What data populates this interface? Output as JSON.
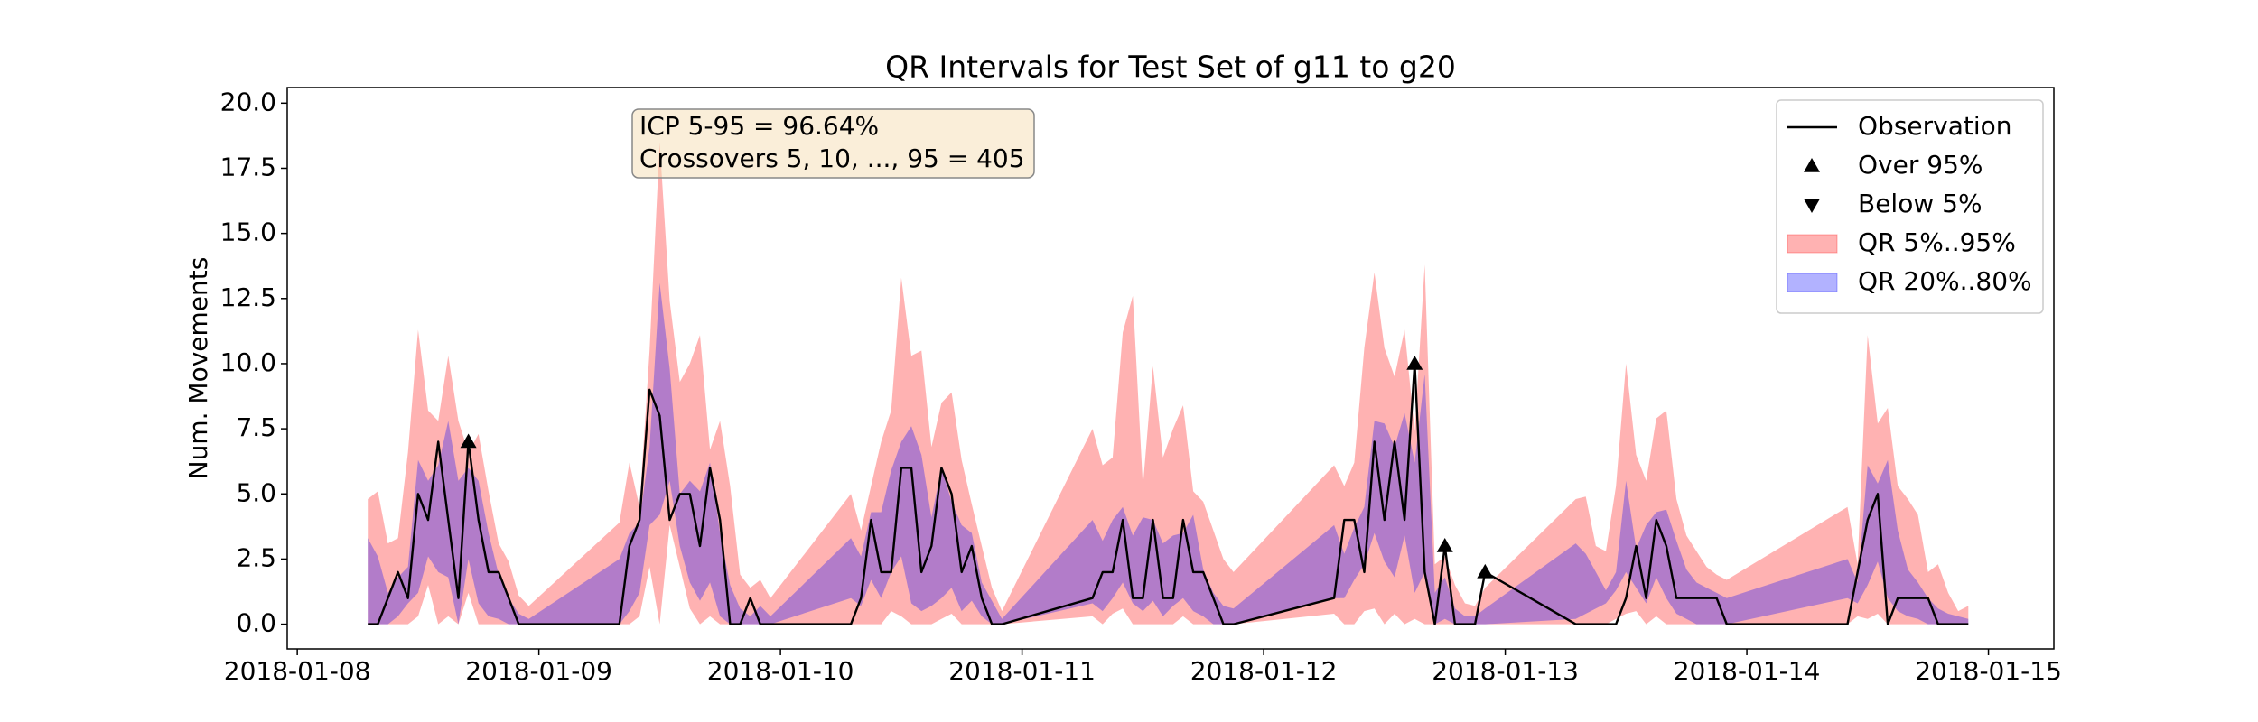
{
  "chart_data": {
    "type": "line",
    "title": "QR Intervals for Test Set of g11 to g20",
    "ylabel": "Num. Movements",
    "annotation": [
      "ICP 5-95 = 96.64%",
      "Crossovers 5, 10, ..., 95 = 405"
    ],
    "legend": "upper right",
    "grid": false,
    "xlim": [
      "2018-01-07T23:00",
      "2018-01-15T06:30"
    ],
    "xticks": [
      "2018-01-08",
      "2018-01-09",
      "2018-01-10",
      "2018-01-11",
      "2018-01-12",
      "2018-01-13",
      "2018-01-14",
      "2018-01-15"
    ],
    "ylim": [
      -0.95,
      20.6
    ],
    "yticks": [
      {
        "value": 0,
        "label": "0.0"
      },
      2.5,
      {
        "value": 5,
        "label": "5.0"
      },
      7.5,
      {
        "value": 10,
        "label": "10.0"
      },
      12.5,
      {
        "value": 15,
        "label": "15.0"
      },
      17.5,
      {
        "value": 20,
        "label": "20.0"
      }
    ],
    "x": [
      "2018-01-08T07:00",
      "2018-01-08T08:00",
      "2018-01-08T09:00",
      "2018-01-08T10:00",
      "2018-01-08T11:00",
      "2018-01-08T12:00",
      "2018-01-08T13:00",
      "2018-01-08T14:00",
      "2018-01-08T15:00",
      "2018-01-08T16:00",
      "2018-01-08T17:00",
      "2018-01-08T18:00",
      "2018-01-08T19:00",
      "2018-01-08T20:00",
      "2018-01-08T21:00",
      "2018-01-08T22:00",
      "2018-01-08T23:00",
      "2018-01-09T08:00",
      "2018-01-09T09:00",
      "2018-01-09T10:00",
      "2018-01-09T11:00",
      "2018-01-09T12:00",
      "2018-01-09T13:00",
      "2018-01-09T14:00",
      "2018-01-09T15:00",
      "2018-01-09T16:00",
      "2018-01-09T17:00",
      "2018-01-09T18:00",
      "2018-01-09T19:00",
      "2018-01-09T20:00",
      "2018-01-09T21:00",
      "2018-01-09T22:00",
      "2018-01-09T23:00",
      "2018-01-10T07:00",
      "2018-01-10T08:00",
      "2018-01-10T09:00",
      "2018-01-10T10:00",
      "2018-01-10T11:00",
      "2018-01-10T12:00",
      "2018-01-10T13:00",
      "2018-01-10T14:00",
      "2018-01-10T15:00",
      "2018-01-10T16:00",
      "2018-01-10T17:00",
      "2018-01-10T18:00",
      "2018-01-10T19:00",
      "2018-01-10T20:00",
      "2018-01-10T21:00",
      "2018-01-10T22:00",
      "2018-01-11T07:00",
      "2018-01-11T08:00",
      "2018-01-11T09:00",
      "2018-01-11T10:00",
      "2018-01-11T11:00",
      "2018-01-11T12:00",
      "2018-01-11T13:00",
      "2018-01-11T14:00",
      "2018-01-11T15:00",
      "2018-01-11T16:00",
      "2018-01-11T17:00",
      "2018-01-11T18:00",
      "2018-01-11T19:00",
      "2018-01-11T20:00",
      "2018-01-11T21:00",
      "2018-01-12T07:00",
      "2018-01-12T08:00",
      "2018-01-12T09:00",
      "2018-01-12T10:00",
      "2018-01-12T11:00",
      "2018-01-12T12:00",
      "2018-01-12T13:00",
      "2018-01-12T14:00",
      "2018-01-12T15:00",
      "2018-01-12T16:00",
      "2018-01-12T17:00",
      "2018-01-12T18:00",
      "2018-01-12T19:00",
      "2018-01-12T20:00",
      "2018-01-12T21:00",
      "2018-01-12T22:00",
      "2018-01-13T07:00",
      "2018-01-13T08:00",
      "2018-01-13T09:00",
      "2018-01-13T10:00",
      "2018-01-13T11:00",
      "2018-01-13T12:00",
      "2018-01-13T13:00",
      "2018-01-13T14:00",
      "2018-01-13T15:00",
      "2018-01-13T16:00",
      "2018-01-13T17:00",
      "2018-01-13T18:00",
      "2018-01-13T19:00",
      "2018-01-13T20:00",
      "2018-01-13T21:00",
      "2018-01-13T22:00",
      "2018-01-14T10:00",
      "2018-01-14T11:00",
      "2018-01-14T12:00",
      "2018-01-14T13:00",
      "2018-01-14T14:00",
      "2018-01-14T15:00",
      "2018-01-14T16:00",
      "2018-01-14T17:00",
      "2018-01-14T18:00",
      "2018-01-14T19:00",
      "2018-01-14T20:00",
      "2018-01-14T21:00",
      "2018-01-14T22:00"
    ],
    "series": [
      {
        "name": "Observation",
        "kind": "line",
        "color": "#000000",
        "values": [
          0,
          0,
          1,
          2,
          1,
          5,
          4,
          7,
          4,
          1,
          7,
          4,
          2,
          2,
          1,
          0,
          0,
          0,
          3,
          4,
          9,
          8,
          4,
          5,
          5,
          3,
          6,
          4,
          0,
          0,
          1,
          0,
          0,
          0,
          1,
          4,
          2,
          2,
          6,
          6,
          2,
          3,
          6,
          5,
          2,
          3,
          1,
          0,
          0,
          1,
          2,
          2,
          4,
          1,
          1,
          4,
          1,
          1,
          4,
          2,
          2,
          1,
          0,
          0,
          1,
          4,
          4,
          2,
          7,
          4,
          7,
          4,
          10,
          2,
          0,
          3,
          0,
          0,
          0,
          2,
          0,
          0,
          0,
          0,
          0,
          1,
          3,
          1,
          4,
          3,
          1,
          1,
          1,
          1,
          1,
          0,
          0,
          2,
          4,
          5,
          0,
          1,
          1,
          1,
          1,
          0,
          0,
          0,
          0
        ]
      },
      {
        "name": "Over 95%",
        "kind": "marker-up",
        "color": "#000000",
        "x": [
          "2018-01-08T17:00",
          "2018-01-12T15:00",
          "2018-01-12T18:00",
          "2018-01-12T22:00"
        ],
        "values": [
          7,
          10,
          3,
          2
        ]
      },
      {
        "name": "Below 5%",
        "kind": "marker-down",
        "color": "#000000",
        "x": [],
        "values": []
      },
      {
        "name": "QR 5%..95%",
        "kind": "band",
        "color": "#ff0000",
        "alpha": 0.3,
        "lower": [
          0,
          0,
          0,
          0,
          0,
          0.3,
          1.5,
          0,
          0.3,
          0,
          1.2,
          0,
          0,
          0,
          0,
          0,
          0,
          0,
          0,
          0.3,
          2.2,
          0,
          3.8,
          2.2,
          0.6,
          0,
          0.3,
          0,
          0,
          0,
          0,
          0,
          0,
          0,
          0,
          0,
          0,
          0.5,
          0.3,
          0,
          0,
          0,
          0.2,
          0.4,
          0,
          0,
          0,
          0,
          0,
          0.3,
          0,
          0.4,
          0.6,
          0,
          0,
          0,
          0,
          0,
          0.3,
          0,
          0,
          0,
          0,
          0,
          0.4,
          0,
          0,
          0.5,
          0.6,
          0,
          0.4,
          0,
          0.2,
          0,
          0,
          0,
          0,
          0,
          0,
          0,
          0,
          0,
          0,
          0,
          0.2,
          0.4,
          0.5,
          0,
          0.3,
          0,
          0,
          0,
          0,
          0,
          0,
          0,
          0,
          0.3,
          0.2,
          0.4,
          0,
          0,
          0,
          0,
          0,
          0,
          0,
          0,
          0
        ],
        "upper": [
          4.8,
          5.1,
          3.1,
          3.3,
          6.6,
          11.3,
          8.2,
          7.8,
          10.3,
          7.8,
          6.6,
          7.3,
          5.1,
          3.1,
          2.4,
          1.1,
          0.7,
          3.9,
          6.2,
          4.5,
          10.5,
          18.5,
          12.4,
          9.3,
          10.0,
          11.1,
          6.7,
          7.8,
          5.3,
          1.9,
          1.4,
          1.7,
          1.0,
          5.0,
          3.6,
          5.3,
          7.0,
          8.2,
          13.3,
          10.3,
          10.5,
          6.8,
          8.5,
          8.9,
          6.3,
          4.6,
          3.0,
          1.4,
          0.5,
          7.5,
          6.1,
          6.4,
          11.2,
          12.6,
          5.3,
          9.9,
          6.4,
          7.5,
          8.4,
          5.1,
          4.7,
          3.6,
          2.5,
          2.0,
          6.1,
          5.3,
          6.2,
          10.6,
          13.5,
          10.6,
          9.5,
          11.3,
          7.4,
          13.8,
          2.3,
          2.6,
          1.5,
          0.8,
          0.7,
          1.4,
          4.8,
          4.9,
          3.0,
          2.8,
          5.3,
          10.0,
          6.5,
          5.5,
          7.9,
          8.2,
          4.8,
          3.4,
          2.8,
          2.2,
          1.9,
          1.7,
          4.5,
          2.3,
          11.1,
          7.7,
          8.3,
          5.3,
          4.8,
          4.2,
          2.0,
          2.3,
          1.2,
          0.5,
          0.7
        ]
      },
      {
        "name": "QR 20%..80%",
        "kind": "band",
        "color": "#0000ff",
        "alpha": 0.3,
        "lower": [
          0,
          0,
          0,
          0.3,
          0.8,
          1.2,
          2.6,
          2.0,
          1.8,
          0,
          2.5,
          0.8,
          0.3,
          0.2,
          0,
          0,
          0,
          0,
          0.5,
          1.2,
          3.8,
          4.2,
          5.5,
          3.0,
          1.6,
          0.9,
          1.6,
          0.3,
          0,
          0,
          0,
          0,
          0,
          1.0,
          0.7,
          1.7,
          1.0,
          2.0,
          2.6,
          0.8,
          0.5,
          0.7,
          1.0,
          1.4,
          0.5,
          0.9,
          0.3,
          0,
          0,
          0.8,
          0.5,
          1.0,
          1.6,
          0.8,
          0.5,
          0.9,
          0.3,
          0.7,
          1.0,
          0.5,
          0.3,
          0,
          0,
          0,
          1.0,
          1.0,
          1.7,
          2.3,
          3.5,
          2.4,
          1.8,
          3.4,
          1.2,
          2.0,
          0,
          0.2,
          0,
          0,
          0,
          0,
          0.2,
          0.4,
          0.6,
          0.8,
          1.3,
          2.0,
          1.4,
          0.8,
          1.8,
          1.0,
          0.4,
          0.2,
          0,
          0,
          0,
          0,
          1.0,
          0.8,
          1.5,
          2.4,
          1.0,
          0.5,
          0.3,
          0.2,
          0,
          0,
          0,
          0,
          0
        ],
        "upper": [
          3.3,
          2.6,
          1.2,
          1.8,
          2.2,
          6.3,
          5.5,
          6.1,
          7.8,
          5.5,
          6.0,
          5.5,
          3.5,
          1.9,
          1.0,
          0.4,
          0.2,
          2.5,
          3.5,
          3.9,
          6.8,
          13.1,
          9.8,
          5.0,
          5.5,
          5.1,
          6.2,
          3.5,
          1.5,
          0.6,
          0.3,
          0.7,
          0.3,
          3.3,
          2.6,
          4.3,
          4.3,
          5.9,
          7.0,
          7.6,
          6.5,
          4.1,
          6.0,
          4.7,
          3.8,
          3.5,
          1.6,
          0.9,
          0.2,
          4.0,
          3.2,
          4.0,
          4.5,
          3.4,
          4.1,
          4.0,
          3.1,
          3.4,
          3.5,
          4.2,
          2.1,
          1.2,
          0.7,
          0.6,
          3.8,
          2.7,
          3.7,
          4.5,
          7.8,
          7.7,
          6.8,
          8.1,
          6.2,
          9.6,
          1.2,
          1.8,
          0.6,
          0.3,
          0.3,
          0.6,
          3.1,
          2.7,
          2.0,
          1.3,
          2.0,
          5.5,
          2.9,
          3.8,
          4.3,
          4.4,
          3.2,
          2.1,
          1.6,
          1.4,
          1.2,
          1.0,
          2.5,
          1.6,
          6.1,
          5.4,
          6.3,
          3.6,
          2.1,
          1.6,
          1.0,
          0.6,
          0.4,
          0.3,
          0.2
        ]
      }
    ]
  }
}
